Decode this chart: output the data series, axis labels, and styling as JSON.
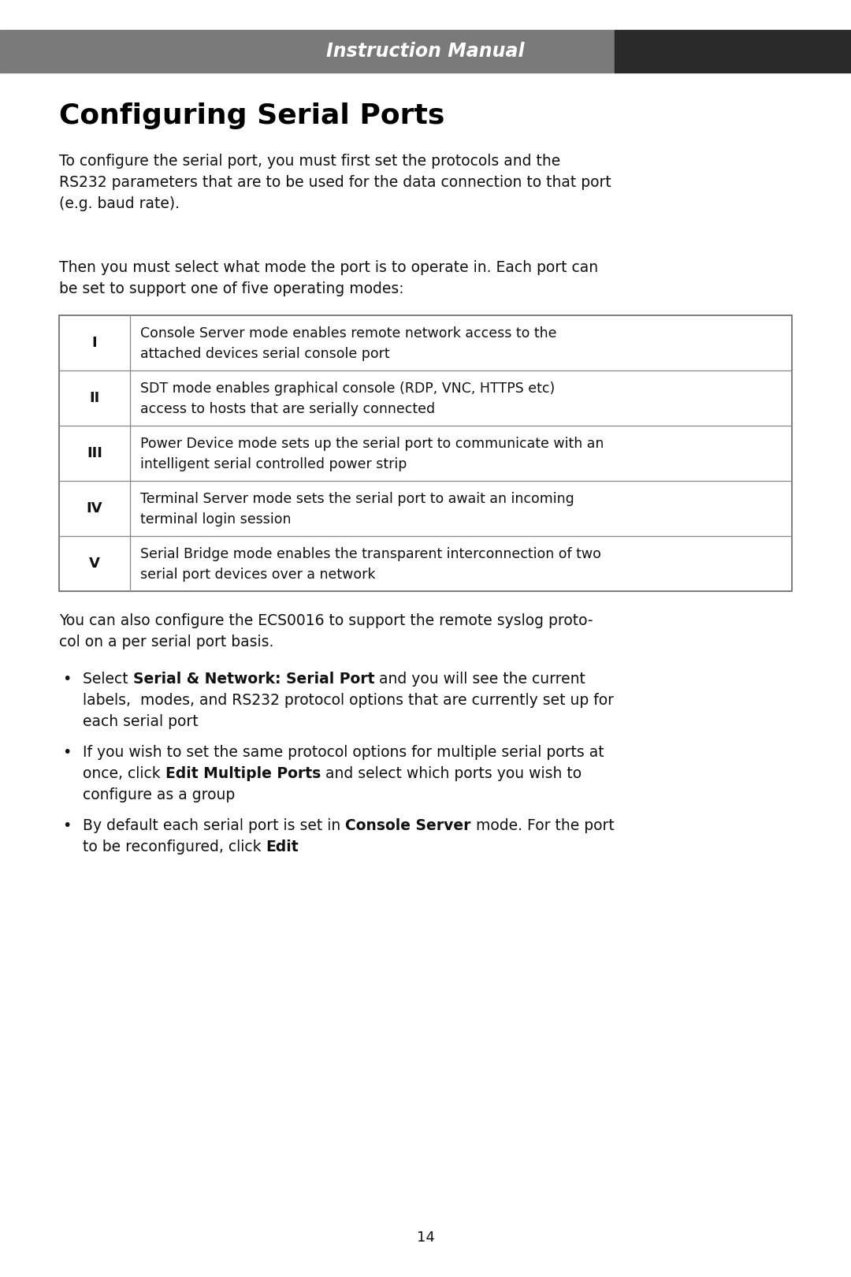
{
  "page_bg": "#ffffff",
  "header_bg_left": "#7a7a7a",
  "header_bg_right": "#2a2a2a",
  "header_text": "Instruction Manual",
  "header_text_color": "#ffffff",
  "title": "Configuring Serial Ports",
  "title_color": "#000000",
  "body_text_color": "#111111",
  "para1_lines": [
    "To configure the serial port, you must first set the protocols and the",
    "RS232 parameters that are to be used for the data connection to that port",
    "(e.g. baud rate)."
  ],
  "para2_lines": [
    "Then you must select what mode the port is to operate in. Each port can",
    "be set to support one of five operating modes:"
  ],
  "table_rows": [
    {
      "label": "I",
      "line1": "Console Server mode enables remote network access to the",
      "line2": "attached devices serial console port"
    },
    {
      "label": "II",
      "line1": "SDT mode enables graphical console (RDP, VNC, HTTPS etc)",
      "line2": "access to hosts that are serially connected"
    },
    {
      "label": "III",
      "line1": "Power Device mode sets up the serial port to communicate with an",
      "line2": "intelligent serial controlled power strip"
    },
    {
      "label": "IV",
      "line1": "Terminal Server mode sets the serial port to await an incoming",
      "line2": "terminal login session"
    },
    {
      "label": "V",
      "line1": "Serial Bridge mode enables the transparent interconnection of two",
      "line2": "serial port devices over a network"
    }
  ],
  "para3_lines": [
    "You can also configure the ECS0016 to support the remote syslog proto-",
    "col on a per serial port basis."
  ],
  "bullet1_lines": [
    [
      [
        {
          "text": "Select ",
          "bold": false
        },
        {
          "text": "Serial & Network: Serial Port",
          "bold": true
        },
        {
          "text": " and you will see the current",
          "bold": false
        }
      ]
    ],
    [
      [
        {
          "text": "labels,  modes, and RS232 protocol options that are currently set up for",
          "bold": false
        }
      ]
    ],
    [
      [
        {
          "text": "each serial port",
          "bold": false
        }
      ]
    ]
  ],
  "bullet2_lines": [
    [
      [
        {
          "text": "If you wish to set the same protocol options for multiple serial ports at",
          "bold": false
        }
      ]
    ],
    [
      [
        {
          "text": "once, click ",
          "bold": false
        },
        {
          "text": "Edit Multiple Ports",
          "bold": true
        },
        {
          "text": " and select which ports you wish to",
          "bold": false
        }
      ]
    ],
    [
      [
        {
          "text": "configure as a group",
          "bold": false
        }
      ]
    ]
  ],
  "bullet3_lines": [
    [
      [
        {
          "text": "By default each serial port is set in ",
          "bold": false
        },
        {
          "text": "Console Server",
          "bold": true
        },
        {
          "text": " mode. For the port",
          "bold": false
        }
      ]
    ],
    [
      [
        {
          "text": "to be reconfigured, click ",
          "bold": false
        },
        {
          "text": "Edit",
          "bold": true
        }
      ]
    ]
  ],
  "page_number": "14"
}
